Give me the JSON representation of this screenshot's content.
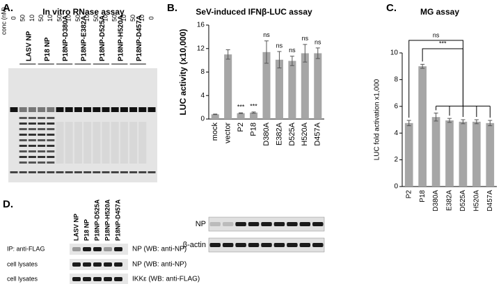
{
  "panel_a": {
    "label": "A.",
    "title": "In vitro RNase assay",
    "conc_label": "conc (nM)",
    "lanes": [
      0,
      50,
      10,
      50,
      10,
      50,
      10,
      50,
      10,
      50,
      10,
      50,
      10,
      50,
      10,
      0
    ],
    "groups": [
      "LASV NP",
      "P18 NP",
      "P18NP-D380A",
      "P18NP-E382A",
      "P18NP-D525A",
      "P18NP-H520A",
      "P18NP-D457A"
    ]
  },
  "chart_data": [
    {
      "type": "bar",
      "panel_label": "B.",
      "title": "SeV-induced IFNβ-LUC assay",
      "ylabel": "LUC activity (x10,000)",
      "categories": [
        "mock",
        "vector",
        "P2",
        "P18",
        "D380A",
        "E382A",
        "D525A",
        "H520A",
        "D457A"
      ],
      "values": [
        0.8,
        11.0,
        1.0,
        1.1,
        11.4,
        10.1,
        9.9,
        11.2,
        11.2
      ],
      "errors": [
        0.05,
        0.8,
        0.05,
        0.1,
        1.9,
        1.4,
        0.8,
        1.5,
        0.9
      ],
      "annotations": [
        null,
        null,
        "***",
        "***",
        "ns",
        "ns",
        "ns",
        "ns",
        "ns"
      ],
      "color": "#a6a6a6",
      "ylim": [
        0,
        16
      ],
      "yticks": [
        0,
        4,
        8,
        12,
        16
      ],
      "blot_labels": [
        "NP",
        "β-actin"
      ]
    },
    {
      "type": "bar",
      "panel_label": "C.",
      "title": "MG assay",
      "ylabel": "LUC fold activation x1,000",
      "categories": [
        "P2",
        "P18",
        "D380A",
        "E382A",
        "D525A",
        "H520A",
        "D457A"
      ],
      "values": [
        4.75,
        9.0,
        5.2,
        4.95,
        4.85,
        4.85,
        4.75
      ],
      "errors": [
        0.2,
        0.15,
        0.3,
        0.15,
        0.15,
        0.15,
        0.2
      ],
      "brackets": [
        "ns",
        "***"
      ],
      "color": "#a6a6a6",
      "ylim": [
        0,
        10
      ],
      "yticks": [
        0,
        2,
        4,
        6,
        8,
        10
      ]
    }
  ],
  "panel_d": {
    "label": "D.",
    "lanes": [
      "LASV NP",
      "P18 NP",
      "P18NP-D525A",
      "P18NP-H520A",
      "P18NP-D457A"
    ],
    "rows": [
      {
        "left": "IP: anti-FLAG",
        "right": "NP (WB: anti-NP)"
      },
      {
        "left": "cell lysates",
        "right": "NP (WB: anti-NP)"
      },
      {
        "left": "cell lysates",
        "right": "IKKε (WB: anti-FLAG)"
      }
    ]
  }
}
